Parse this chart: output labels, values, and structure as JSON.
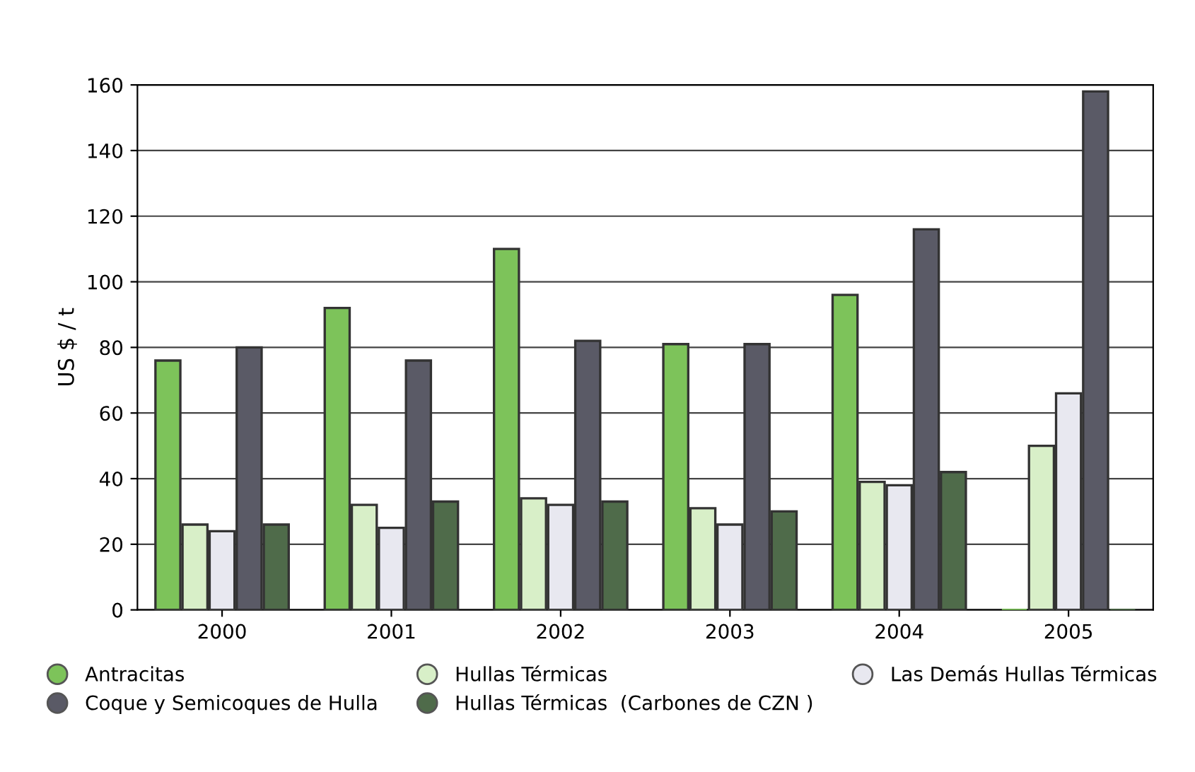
{
  "chart_data": {
    "type": "bar",
    "ylabel": "US $ / t",
    "categories": [
      "2000",
      "2001",
      "2002",
      "2003",
      "2004",
      "2005"
    ],
    "series": [
      {
        "name": "Antracitas",
        "color": "#7dc35a",
        "values": [
          76,
          92,
          110,
          81,
          96,
          0
        ]
      },
      {
        "name": "Hullas Térmicas",
        "color": "#d8efc8",
        "values": [
          26,
          32,
          34,
          31,
          39,
          50
        ]
      },
      {
        "name": "Las Demás Hullas Térmicas",
        "color": "#e8e8f0",
        "values": [
          24,
          25,
          32,
          26,
          38,
          66
        ]
      },
      {
        "name": "Coque y Semicoques de Hulla",
        "color": "#5a5a66",
        "values": [
          80,
          76,
          82,
          81,
          116,
          158
        ]
      },
      {
        "name": "Hullas Térmicas  (Carbones de CZN )",
        "color": "#4f6b4a",
        "values": [
          26,
          33,
          33,
          30,
          42,
          0
        ]
      }
    ],
    "ylim": [
      0,
      160
    ],
    "yticks": [
      0,
      20,
      40,
      60,
      80,
      100,
      120,
      140,
      160
    ],
    "grid": "y",
    "legend": "bottom"
  }
}
